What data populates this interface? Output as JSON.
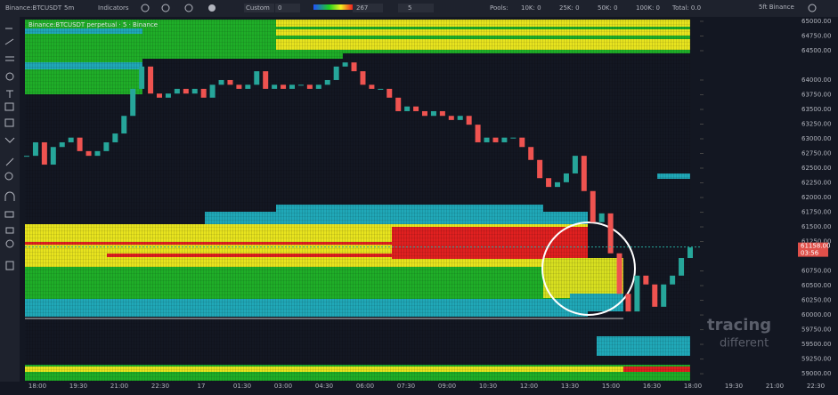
{
  "toolbar": {
    "symbol": "Binance:BTCUSDT",
    "interval": "5m",
    "indicators": "Indicators",
    "preset": "Custom",
    "preset_value": "0",
    "range_value": "267",
    "count_value": "5",
    "pools_label": "Pools:",
    "pools": [
      "10K: 0",
      "25K: 0",
      "50K: 0",
      "100K: 0"
    ],
    "total": "Total: 0.0",
    "exchange": "5ft Binance"
  },
  "chart_data": {
    "type": "candlestick",
    "legend_text": "Binance:BTCUSDT perpetual · 5 · Binance",
    "watermark": [
      "tracing",
      "different"
    ],
    "time_labels": [
      "18:00",
      "19:30",
      "21:00",
      "22:30",
      "17",
      "01:30",
      "03:00",
      "04:30",
      "06:00",
      "07:30",
      "09:00",
      "10:30",
      "12:00",
      "13:30",
      "15:00",
      "16:30",
      "18:00",
      "19:30",
      "21:00",
      "22:30"
    ],
    "values": [
      62710,
      62940,
      62560,
      62860,
      62940,
      63020,
      62790,
      62710,
      62790,
      62940,
      63090,
      63390,
      63850,
      64230,
      63770,
      63700,
      63770,
      63850,
      63770,
      63850,
      63700,
      63920,
      64000,
      63920,
      63850,
      63920,
      64150,
      63850,
      63920,
      63850,
      63920,
      63920,
      63850,
      63920,
      64000,
      64230,
      64300,
      64150,
      63920,
      63850,
      63850,
      63700,
      63470,
      63550,
      63470,
      63390,
      63470,
      63390,
      63320,
      63390,
      63240,
      62940,
      63020,
      62940,
      63020,
      63020,
      62860,
      62640,
      62330,
      62180,
      62260,
      62410,
      62710,
      62110,
      61580,
      61730,
      61050,
      60360,
      60060,
      60670,
      60520,
      60140,
      60520,
      60670,
      60970,
      61150
    ],
    "up_color": "#26a69a",
    "down_color": "#ef5350",
    "ylim": [
      58880,
      65060
    ],
    "yticks": [
      {
        "value": 65000,
        "label": "65000.00"
      },
      {
        "value": 64750,
        "label": "64750.00"
      },
      {
        "value": 64500,
        "label": "64500.00"
      },
      {
        "value": 64000,
        "label": "64000.00"
      },
      {
        "value": 63750,
        "label": "63750.00"
      },
      {
        "value": 63500,
        "label": "63500.00"
      },
      {
        "value": 63250,
        "label": "63250.00"
      },
      {
        "value": 63000,
        "label": "63000.00"
      },
      {
        "value": 62750,
        "label": "62750.00"
      },
      {
        "value": 62500,
        "label": "62500.00"
      },
      {
        "value": 62250,
        "label": "62250.00"
      },
      {
        "value": 62000,
        "label": "62000.00"
      },
      {
        "value": 61750,
        "label": "61750.00"
      },
      {
        "value": 61500,
        "label": "61500.00"
      },
      {
        "value": 61250,
        "label": "61250.00"
      },
      {
        "value": 60750,
        "label": "60750.00"
      },
      {
        "value": 60500,
        "label": "60500.00"
      },
      {
        "value": 60250,
        "label": "60250.00"
      },
      {
        "value": 60000,
        "label": "60000.00"
      },
      {
        "value": 59750,
        "label": "59750.00"
      },
      {
        "value": 59500,
        "label": "59500.00"
      },
      {
        "value": 59250,
        "label": "59250.00"
      },
      {
        "value": 59000,
        "label": "59000.00"
      }
    ],
    "last_price": {
      "value": 61158,
      "label": "61158.00"
    },
    "countdown": "03:56"
  }
}
